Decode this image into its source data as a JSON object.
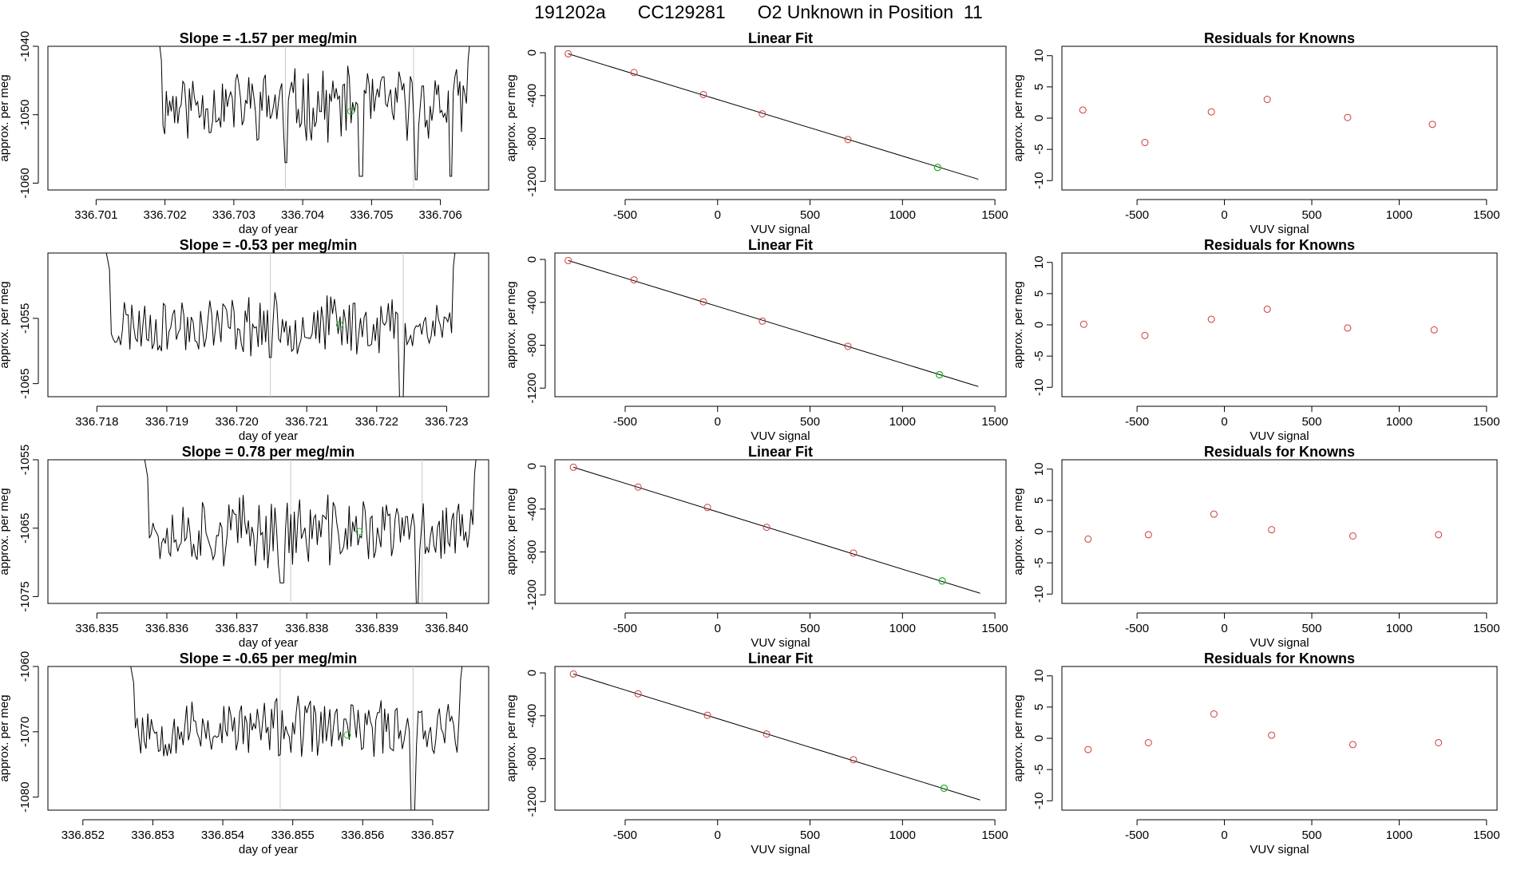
{
  "header": {
    "run_id": "191202a",
    "tank_id": "CC129281",
    "description": "O2 Unknown in Position  11"
  },
  "colors": {
    "trace": "#000000",
    "known_point": "#d03a3a",
    "unknown_point": "#2db52d",
    "marker_line": "#c8c8c8",
    "frame": "#000000"
  },
  "chart_data": [
    {
      "type": "line",
      "panel": "trace",
      "row": 1,
      "title": "Slope =  -1.57  per meg/min",
      "xlabel": "day of year",
      "ylabel": "approx. per meg",
      "xlim": [
        336.7003,
        336.7067
      ],
      "ylim": [
        -1061,
        -1040
      ],
      "xticks": [
        336.701,
        336.702,
        336.703,
        336.704,
        336.705,
        336.706
      ],
      "xtick_labels": [
        "336.701",
        "336.702",
        "336.703",
        "336.704",
        "336.705",
        "336.706"
      ],
      "yticks": [
        -1060,
        -1050,
        -1040
      ],
      "ytick_labels": [
        "-1060",
        "-1050",
        "-1040"
      ],
      "vlines": [
        336.70375,
        336.70561
      ],
      "trace": {
        "x_start": 336.7019,
        "x_end": 336.70645,
        "base": -1048.5,
        "amp": 4.5,
        "seed": 11,
        "dips": [
          [
            336.70375,
            -1057
          ],
          [
            336.70485,
            -1059
          ],
          [
            336.70565,
            -1059.5
          ],
          [
            336.70615,
            -1059
          ]
        ],
        "edge": "up"
      },
      "unknown_point": {
        "x": 336.7047,
        "y": -1049.5
      }
    },
    {
      "type": "line",
      "panel": "trace",
      "row": 2,
      "title": "Slope =  -0.53  per meg/min",
      "xlabel": "day of year",
      "ylabel": "approx. per meg",
      "xlim": [
        336.7173,
        336.7236
      ],
      "ylim": [
        -1067,
        -1045
      ],
      "xticks": [
        336.718,
        336.719,
        336.72,
        336.721,
        336.722,
        336.723
      ],
      "xtick_labels": [
        "336.718",
        "336.719",
        "336.720",
        "336.721",
        "336.722",
        "336.723"
      ],
      "yticks": [
        -1065,
        -1055
      ],
      "ytick_labels": [
        "-1065",
        "-1055"
      ],
      "vlines": [
        336.72048,
        336.72238
      ],
      "trace": {
        "x_start": 336.7181,
        "x_end": 336.72315,
        "base": -1056,
        "amp": 4,
        "seed": 23,
        "dips": [
          [
            336.72048,
            -1061
          ],
          [
            336.72235,
            -1067
          ]
        ],
        "edge": "both"
      },
      "unknown_point": {
        "x": 336.72147,
        "y": -1056
      }
    },
    {
      "type": "line",
      "panel": "trace",
      "row": 3,
      "title": "Slope =  0.78  per meg/min",
      "xlabel": "day of year",
      "ylabel": "approx. per meg",
      "xlim": [
        336.8343,
        336.8406
      ],
      "ylim": [
        -1076,
        -1055
      ],
      "xticks": [
        336.835,
        336.836,
        336.837,
        336.838,
        336.839,
        336.84
      ],
      "xtick_labels": [
        "336.835",
        "336.836",
        "336.837",
        "336.838",
        "336.839",
        "336.840"
      ],
      "yticks": [
        -1075,
        -1065,
        -1055
      ],
      "ytick_labels": [
        "-1075",
        "-1065",
        "-1055"
      ],
      "vlines": [
        336.83777,
        336.83965
      ],
      "trace": {
        "x_start": 336.83565,
        "x_end": 336.84045,
        "base": -1065.5,
        "amp": 4.5,
        "seed": 37,
        "dips": [
          [
            336.83765,
            -1073
          ],
          [
            336.83958,
            -1076
          ]
        ],
        "edge": "both"
      },
      "unknown_point": {
        "x": 336.83875,
        "y": -1065.5
      }
    },
    {
      "type": "line",
      "panel": "trace",
      "row": 4,
      "title": "Slope =  -0.65  per meg/min",
      "xlabel": "day of year",
      "ylabel": "approx. per meg",
      "xlim": [
        336.8515,
        336.8578
      ],
      "ylim": [
        -1082,
        -1060
      ],
      "xticks": [
        336.852,
        336.853,
        336.854,
        336.855,
        336.856,
        336.857
      ],
      "xtick_labels": [
        "336.852",
        "336.853",
        "336.854",
        "336.855",
        "336.856",
        "336.857"
      ],
      "yticks": [
        -1080,
        -1070,
        -1060
      ],
      "ytick_labels": [
        "-1080",
        "-1070",
        "-1060"
      ],
      "vlines": [
        336.85482,
        336.85672
      ],
      "trace": {
        "x_start": 336.85265,
        "x_end": 336.85745,
        "base": -1069.5,
        "amp": 4,
        "seed": 53,
        "dips": [
          [
            336.85672,
            -1082
          ]
        ],
        "edge": "both"
      },
      "unknown_point": {
        "x": 336.85578,
        "y": -1070.5
      }
    },
    {
      "type": "scatter",
      "panel": "fit",
      "row": 1,
      "title": "Linear Fit",
      "xlabel": "VUV signal",
      "ylabel": "approx. per meg",
      "xlim": [
        -880,
        1560
      ],
      "ylim": [
        -1280,
        60
      ],
      "xticks": [
        -500,
        0,
        500,
        1000,
        1500
      ],
      "xtick_labels": [
        "-500",
        "0",
        "500",
        "1000",
        "1500"
      ],
      "yticks": [
        -1200,
        -800,
        -400,
        0
      ],
      "ytick_labels": [
        "-1200",
        "-800",
        "-400",
        "0"
      ],
      "knowns": {
        "x": [
          -808,
          -452,
          -77,
          242,
          705
        ],
        "y": [
          -10,
          -185,
          -390,
          -570,
          -810
        ]
      },
      "unknown": {
        "x": 1190,
        "y": -1070
      },
      "fit_line": {
        "x": [
          -808,
          1410
        ],
        "y": [
          -10,
          -1180
        ]
      }
    },
    {
      "type": "scatter",
      "panel": "fit",
      "row": 2,
      "title": "Linear Fit",
      "xlabel": "VUV signal",
      "ylabel": "approx. per meg",
      "xlim": [
        -880,
        1560
      ],
      "ylim": [
        -1280,
        60
      ],
      "xticks": [
        -500,
        0,
        500,
        1000,
        1500
      ],
      "xtick_labels": [
        "-500",
        "0",
        "500",
        "1000",
        "1500"
      ],
      "yticks": [
        -1200,
        -800,
        -400,
        0
      ],
      "ytick_labels": [
        "-1200",
        "-800",
        "-400",
        "0"
      ],
      "knowns": {
        "x": [
          -808,
          -452,
          -77,
          242,
          705
        ],
        "y": [
          -10,
          -190,
          -395,
          -575,
          -810
        ]
      },
      "unknown": {
        "x": 1200,
        "y": -1075
      },
      "fit_line": {
        "x": [
          -808,
          1410
        ],
        "y": [
          -10,
          -1185
        ]
      }
    },
    {
      "type": "scatter",
      "panel": "fit",
      "row": 3,
      "title": "Linear Fit",
      "xlabel": "VUV signal",
      "ylabel": "approx. per meg",
      "xlim": [
        -880,
        1560
      ],
      "ylim": [
        -1280,
        60
      ],
      "xticks": [
        -500,
        0,
        500,
        1000,
        1500
      ],
      "xtick_labels": [
        "-500",
        "0",
        "500",
        "1000",
        "1500"
      ],
      "yticks": [
        -1200,
        -800,
        -400,
        0
      ],
      "ytick_labels": [
        "-1200",
        "-800",
        "-400",
        "0"
      ],
      "knowns": {
        "x": [
          -780,
          -430,
          -55,
          265,
          735
        ],
        "y": [
          -10,
          -195,
          -385,
          -570,
          -810
        ]
      },
      "unknown": {
        "x": 1215,
        "y": -1070
      },
      "fit_line": {
        "x": [
          -780,
          1420
        ],
        "y": [
          -10,
          -1185
        ]
      }
    },
    {
      "type": "scatter",
      "panel": "fit",
      "row": 4,
      "title": "Linear Fit",
      "xlabel": "VUV signal",
      "ylabel": "approx. per meg",
      "xlim": [
        -880,
        1560
      ],
      "ylim": [
        -1280,
        60
      ],
      "xticks": [
        -500,
        0,
        500,
        1000,
        1500
      ],
      "xtick_labels": [
        "-500",
        "0",
        "500",
        "1000",
        "1500"
      ],
      "yticks": [
        -1200,
        -800,
        -400,
        0
      ],
      "ytick_labels": [
        "-1200",
        "-800",
        "-400",
        "0"
      ],
      "knowns": {
        "x": [
          -780,
          -430,
          -55,
          265,
          735
        ],
        "y": [
          -10,
          -195,
          -395,
          -570,
          -810
        ]
      },
      "unknown": {
        "x": 1225,
        "y": -1075
      },
      "fit_line": {
        "x": [
          -780,
          1420
        ],
        "y": [
          -10,
          -1185
        ]
      }
    },
    {
      "type": "scatter",
      "panel": "residuals",
      "row": 1,
      "title": "Residuals for Knowns",
      "xlabel": "VUV signal",
      "ylabel": "approx. per meg",
      "xlim": [
        -930,
        1560
      ],
      "ylim": [
        -11.5,
        11.5
      ],
      "xticks": [
        -500,
        0,
        500,
        1000,
        1500
      ],
      "xtick_labels": [
        "-500",
        "0",
        "500",
        "1000",
        "1500"
      ],
      "yticks": [
        -10,
        -5,
        0,
        5,
        10
      ],
      "ytick_labels": [
        "-10",
        "-5",
        "0",
        "5",
        "10"
      ],
      "residuals": {
        "x": [
          -810,
          -455,
          -75,
          245,
          705,
          1190
        ],
        "y": [
          1.3,
          -3.9,
          1.0,
          3.0,
          0.1,
          -1.0
        ]
      }
    },
    {
      "type": "scatter",
      "panel": "residuals",
      "row": 2,
      "title": "Residuals for Knowns",
      "xlabel": "VUV signal",
      "ylabel": "approx. per meg",
      "xlim": [
        -930,
        1560
      ],
      "ylim": [
        -11.5,
        11.5
      ],
      "xticks": [
        -500,
        0,
        500,
        1000,
        1500
      ],
      "xtick_labels": [
        "-500",
        "0",
        "500",
        "1000",
        "1500"
      ],
      "yticks": [
        -10,
        -5,
        0,
        5,
        10
      ],
      "ytick_labels": [
        "-10",
        "-5",
        "0",
        "5",
        "10"
      ],
      "residuals": {
        "x": [
          -805,
          -455,
          -75,
          245,
          705,
          1200
        ],
        "y": [
          0.1,
          -1.7,
          0.9,
          2.5,
          -0.5,
          -0.8
        ]
      }
    },
    {
      "type": "scatter",
      "panel": "residuals",
      "row": 3,
      "title": "Residuals for Knowns",
      "xlabel": "VUV signal",
      "ylabel": "approx. per meg",
      "xlim": [
        -930,
        1560
      ],
      "ylim": [
        -11.5,
        11.5
      ],
      "xticks": [
        -500,
        0,
        500,
        1000,
        1500
      ],
      "xtick_labels": [
        "-500",
        "0",
        "500",
        "1000",
        "1500"
      ],
      "yticks": [
        -10,
        -5,
        0,
        5,
        10
      ],
      "ytick_labels": [
        "-10",
        "-5",
        "0",
        "5",
        "10"
      ],
      "residuals": {
        "x": [
          -780,
          -435,
          -60,
          270,
          735,
          1225
        ],
        "y": [
          -1.2,
          -0.5,
          2.8,
          0.3,
          -0.7,
          -0.5
        ]
      }
    },
    {
      "type": "scatter",
      "panel": "residuals",
      "row": 4,
      "title": "Residuals for Knowns",
      "xlabel": "VUV signal",
      "ylabel": "approx. per meg",
      "xlim": [
        -930,
        1560
      ],
      "ylim": [
        -11.5,
        11.5
      ],
      "xticks": [
        -500,
        0,
        500,
        1000,
        1500
      ],
      "xtick_labels": [
        "-500",
        "0",
        "500",
        "1000",
        "1500"
      ],
      "yticks": [
        -10,
        -5,
        0,
        5,
        10
      ],
      "ytick_labels": [
        "-10",
        "-5",
        "0",
        "5",
        "10"
      ],
      "residuals": {
        "x": [
          -780,
          -435,
          -60,
          270,
          735,
          1225
        ],
        "y": [
          -1.8,
          -0.7,
          3.9,
          0.5,
          -1.0,
          -0.7
        ]
      }
    }
  ]
}
